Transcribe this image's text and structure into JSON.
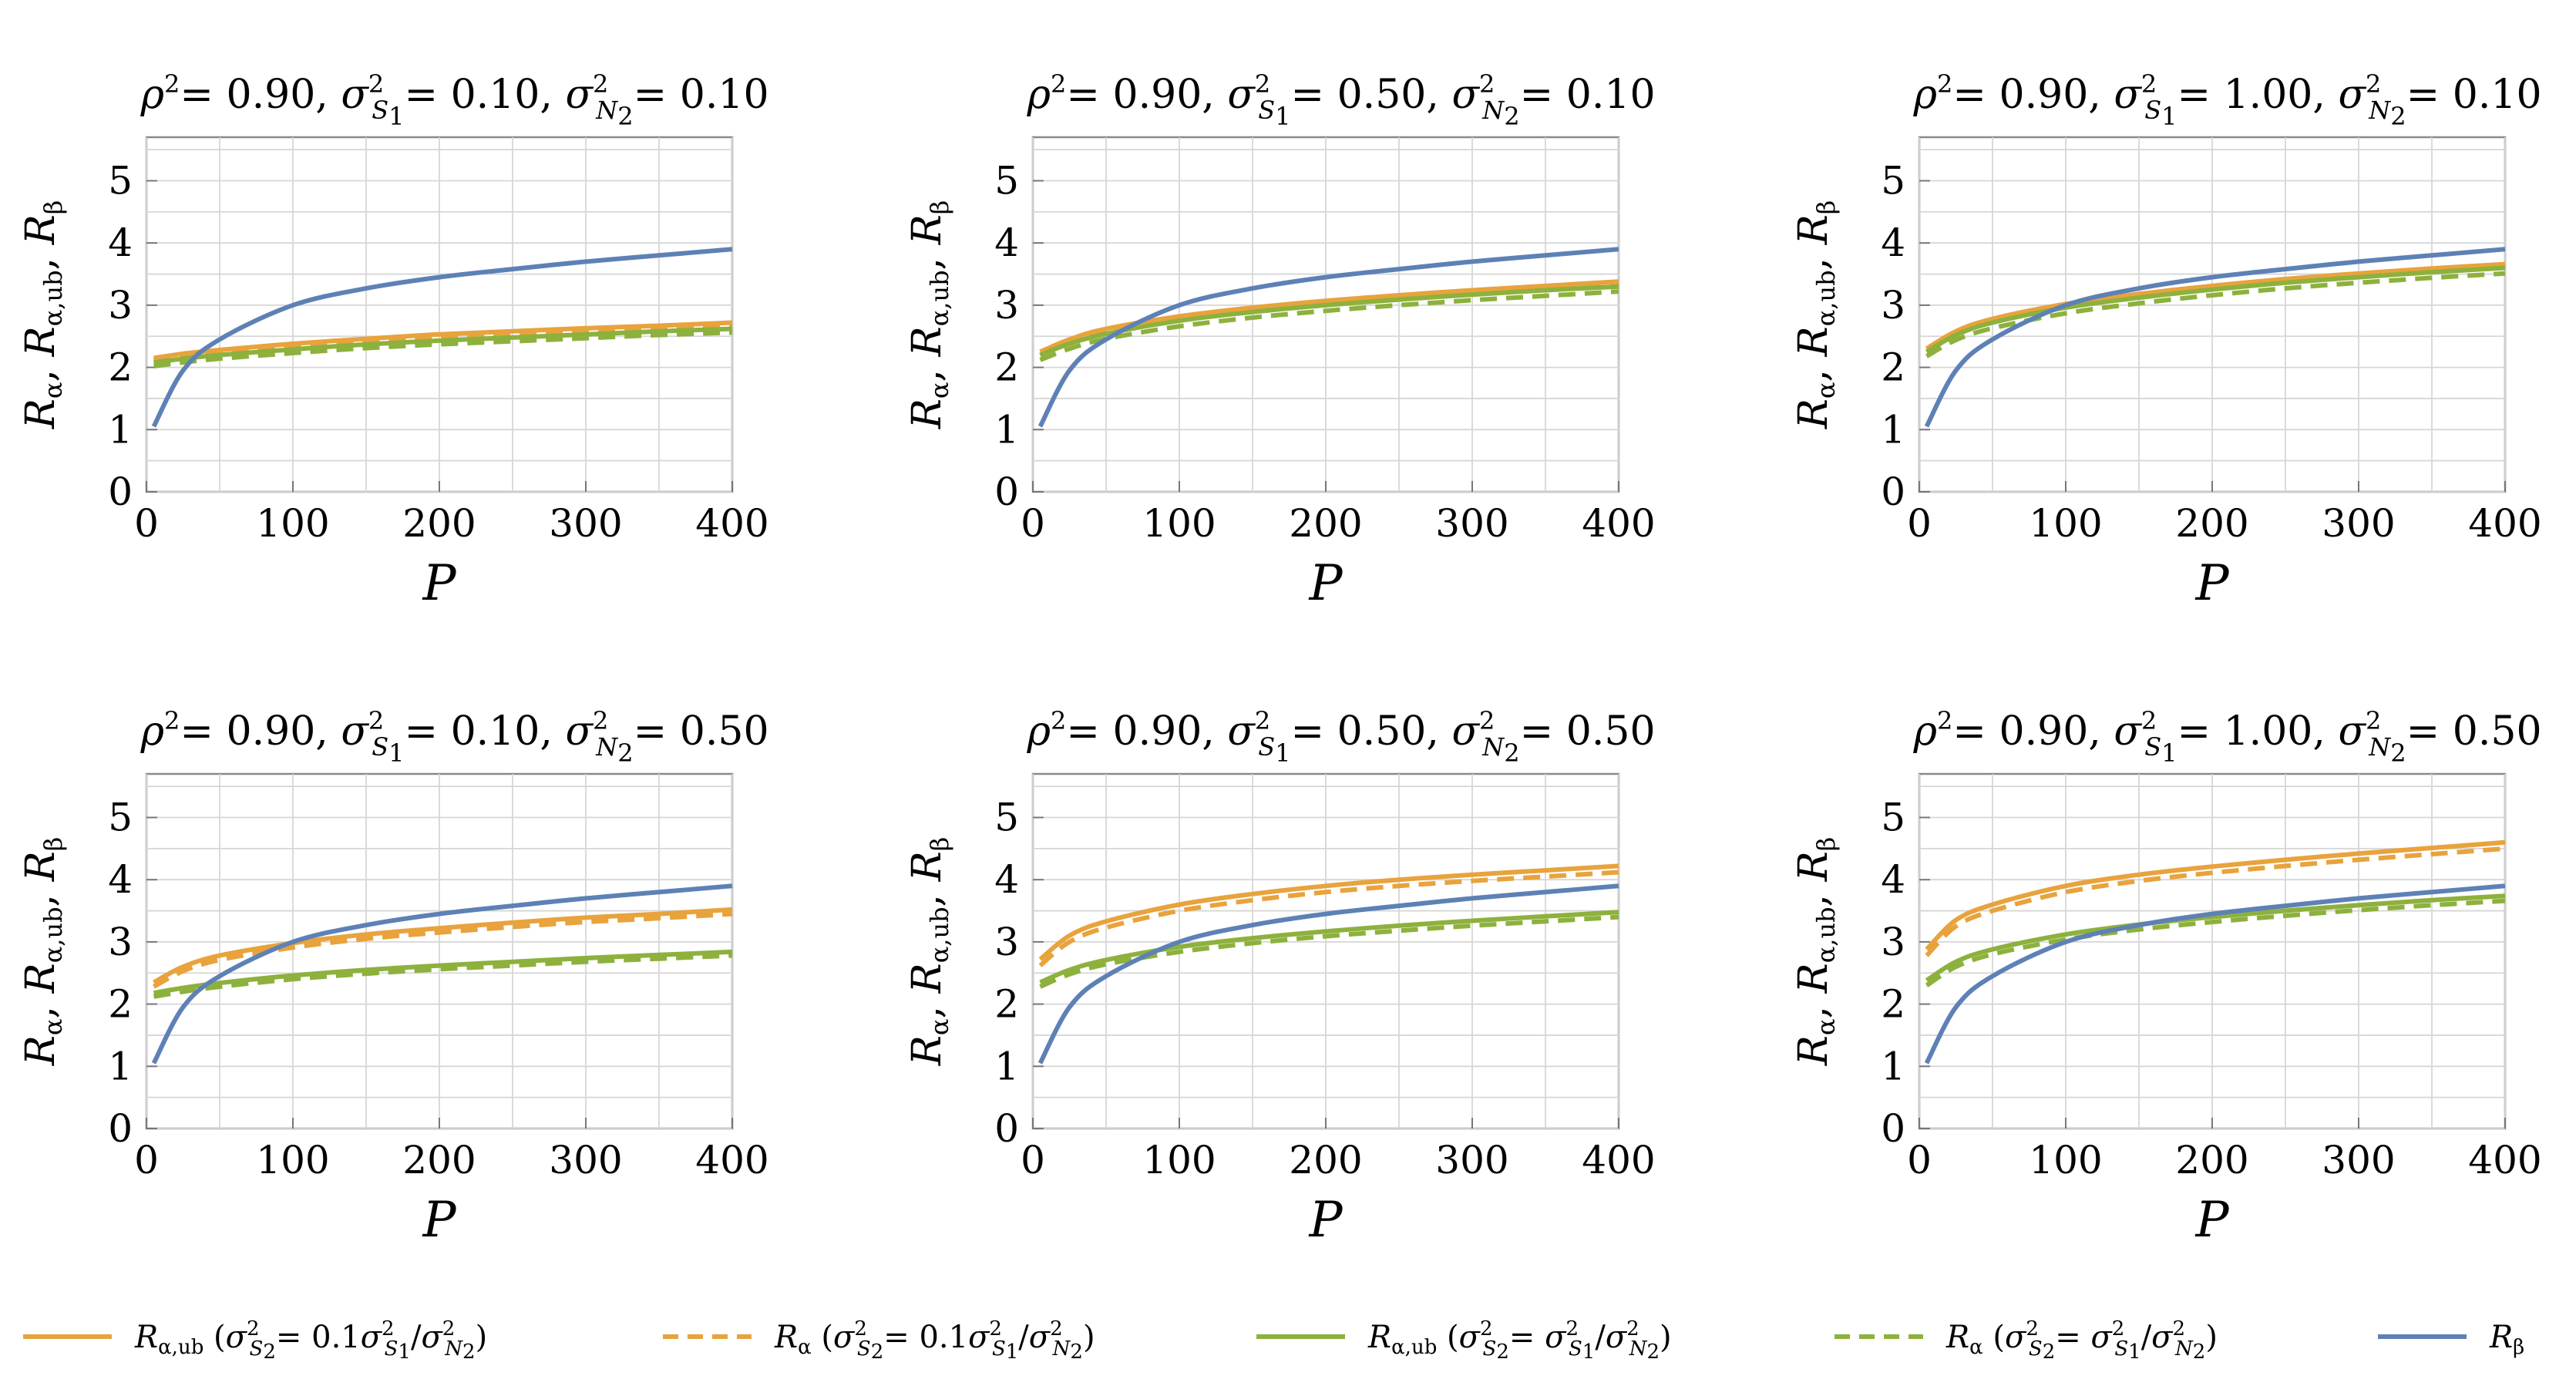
{
  "figure": {
    "x_axis_label": "P",
    "y_axis_label": "Rα, Rα,ub, Rβ",
    "legend": [
      {
        "label": "Rα,ub (σ²S₂= 0.1σ²S₁/σ²N₂)",
        "color": "#E8A33D",
        "dash": "solid"
      },
      {
        "label": "Rα (σ²S₂= 0.1σ²S₁/σ²N₂)",
        "color": "#E8A33D",
        "dash": "dashed"
      },
      {
        "label": "Rα,ub (σ²S₂= σ²S₁/σ²N₂)",
        "color": "#8DB13D",
        "dash": "solid"
      },
      {
        "label": "Rα  (σ²S₂= σ²S₁/σ²N₂)",
        "color": "#8DB13D",
        "dash": "dashed"
      },
      {
        "label": "Rβ",
        "color": "#5E81B5",
        "dash": "solid"
      }
    ]
  },
  "chart_data": [
    {
      "type": "line",
      "title": "ρ²= 0.90, σ²S₁= 0.10, σ²N₂= 0.10",
      "rho2": "0.90",
      "s1": "0.10",
      "n2": "0.10",
      "xlabel": "P",
      "ylabel": "Rα, Rα,ub, Rβ",
      "xlim": [
        0,
        400
      ],
      "ylim": [
        0,
        5.7
      ],
      "xticks": [
        "0",
        "100",
        "200",
        "300",
        "400"
      ],
      "yticks": [
        "0",
        "1",
        "2",
        "3",
        "4",
        "5"
      ],
      "x": [
        5,
        25,
        50,
        100,
        150,
        200,
        250,
        300,
        350,
        400
      ],
      "series": [
        {
          "name": "Rα,ub (0.1)",
          "values": [
            2.15,
            2.22,
            2.28,
            2.38,
            2.46,
            2.53,
            2.58,
            2.63,
            2.67,
            2.72
          ]
        },
        {
          "name": "Rα (0.1)",
          "values": [
            2.12,
            2.19,
            2.25,
            2.35,
            2.43,
            2.5,
            2.55,
            2.6,
            2.64,
            2.69
          ]
        },
        {
          "name": "Rα,ub (1)",
          "values": [
            2.08,
            2.14,
            2.2,
            2.29,
            2.37,
            2.43,
            2.48,
            2.53,
            2.58,
            2.62
          ]
        },
        {
          "name": "Rα (1)",
          "values": [
            2.02,
            2.08,
            2.14,
            2.23,
            2.31,
            2.37,
            2.42,
            2.47,
            2.52,
            2.56
          ]
        },
        {
          "name": "Rβ",
          "values": [
            1.05,
            1.95,
            2.45,
            3.0,
            3.27,
            3.45,
            3.58,
            3.7,
            3.8,
            3.9
          ]
        }
      ]
    },
    {
      "type": "line",
      "title": "ρ²= 0.90, σ²S₁= 0.50, σ²N₂= 0.10",
      "rho2": "0.90",
      "s1": "0.50",
      "n2": "0.10",
      "xlabel": "P",
      "ylabel": "Rα, Rα,ub, Rβ",
      "xlim": [
        0,
        400
      ],
      "ylim": [
        0,
        5.7
      ],
      "xticks": [
        "0",
        "100",
        "200",
        "300",
        "400"
      ],
      "yticks": [
        "0",
        "1",
        "2",
        "3",
        "4",
        "5"
      ],
      "x": [
        5,
        25,
        50,
        100,
        150,
        200,
        250,
        300,
        350,
        400
      ],
      "series": [
        {
          "name": "Rα,ub (0.1)",
          "values": [
            2.25,
            2.45,
            2.62,
            2.82,
            2.96,
            3.07,
            3.16,
            3.24,
            3.31,
            3.38
          ]
        },
        {
          "name": "Rα (0.1)",
          "values": [
            2.2,
            2.4,
            2.57,
            2.78,
            2.92,
            3.03,
            3.12,
            3.2,
            3.27,
            3.33
          ]
        },
        {
          "name": "Rα,ub (1)",
          "values": [
            2.2,
            2.38,
            2.54,
            2.75,
            2.89,
            3.0,
            3.09,
            3.17,
            3.24,
            3.3
          ]
        },
        {
          "name": "Rα (1)",
          "values": [
            2.12,
            2.3,
            2.46,
            2.66,
            2.8,
            2.91,
            3.0,
            3.08,
            3.15,
            3.22
          ]
        },
        {
          "name": "Rβ",
          "values": [
            1.05,
            1.95,
            2.45,
            3.0,
            3.27,
            3.45,
            3.58,
            3.7,
            3.8,
            3.9
          ]
        }
      ]
    },
    {
      "type": "line",
      "title": "ρ²= 0.90, σ²S₁= 1.00, σ²N₂= 0.10",
      "rho2": "0.90",
      "s1": "1.00",
      "n2": "0.10",
      "xlabel": "P",
      "ylabel": "Rα, Rα,ub, Rβ",
      "xlim": [
        0,
        400
      ],
      "ylim": [
        0,
        5.7
      ],
      "xticks": [
        "0",
        "100",
        "200",
        "300",
        "400"
      ],
      "yticks": [
        "0",
        "1",
        "2",
        "3",
        "4",
        "5"
      ],
      "x": [
        5,
        25,
        50,
        100,
        150,
        200,
        250,
        300,
        350,
        400
      ],
      "series": [
        {
          "name": "Rα,ub (0.1)",
          "values": [
            2.3,
            2.58,
            2.78,
            3.02,
            3.18,
            3.31,
            3.42,
            3.51,
            3.59,
            3.66
          ]
        },
        {
          "name": "Rα (0.1)",
          "values": [
            2.25,
            2.53,
            2.73,
            2.98,
            3.14,
            3.27,
            3.38,
            3.47,
            3.55,
            3.62
          ]
        },
        {
          "name": "Rα,ub (1)",
          "values": [
            2.25,
            2.52,
            2.72,
            2.96,
            3.12,
            3.25,
            3.36,
            3.45,
            3.53,
            3.6
          ]
        },
        {
          "name": "Rα (1)",
          "values": [
            2.18,
            2.44,
            2.63,
            2.87,
            3.03,
            3.16,
            3.27,
            3.36,
            3.44,
            3.51
          ]
        },
        {
          "name": "Rβ",
          "values": [
            1.05,
            1.95,
            2.45,
            3.0,
            3.27,
            3.45,
            3.58,
            3.7,
            3.8,
            3.9
          ]
        }
      ]
    },
    {
      "type": "line",
      "title": "ρ²= 0.90, σ²S₁= 0.10, σ²N₂= 0.50",
      "rho2": "0.90",
      "s1": "0.10",
      "n2": "0.50",
      "xlabel": "P",
      "ylabel": "Rα, Rα,ub, Rβ",
      "xlim": [
        0,
        400
      ],
      "ylim": [
        0,
        5.7
      ],
      "xticks": [
        "0",
        "100",
        "200",
        "300",
        "400"
      ],
      "yticks": [
        "0",
        "1",
        "2",
        "3",
        "4",
        "5"
      ],
      "x": [
        5,
        25,
        50,
        100,
        150,
        200,
        250,
        300,
        350,
        400
      ],
      "series": [
        {
          "name": "Rα,ub (0.1)",
          "values": [
            2.35,
            2.6,
            2.78,
            2.98,
            3.12,
            3.22,
            3.31,
            3.39,
            3.45,
            3.52
          ]
        },
        {
          "name": "Rα (0.1)",
          "values": [
            2.28,
            2.53,
            2.71,
            2.91,
            3.05,
            3.15,
            3.24,
            3.32,
            3.38,
            3.45
          ]
        },
        {
          "name": "Rα,ub (1)",
          "values": [
            2.18,
            2.26,
            2.34,
            2.46,
            2.55,
            2.62,
            2.68,
            2.74,
            2.79,
            2.84
          ]
        },
        {
          "name": "Rα (1)",
          "values": [
            2.12,
            2.2,
            2.28,
            2.4,
            2.49,
            2.56,
            2.62,
            2.68,
            2.73,
            2.78
          ]
        },
        {
          "name": "Rβ",
          "values": [
            1.05,
            1.95,
            2.45,
            3.0,
            3.27,
            3.45,
            3.58,
            3.7,
            3.8,
            3.9
          ]
        }
      ]
    },
    {
      "type": "line",
      "title": "ρ²= 0.90, σ²S₁= 0.50, σ²N₂= 0.50",
      "rho2": "0.90",
      "s1": "0.50",
      "n2": "0.50",
      "xlabel": "P",
      "ylabel": "Rα, Rα,ub, Rβ",
      "xlim": [
        0,
        400
      ],
      "ylim": [
        0,
        5.7
      ],
      "xticks": [
        "0",
        "100",
        "200",
        "300",
        "400"
      ],
      "yticks": [
        "0",
        "1",
        "2",
        "3",
        "4",
        "5"
      ],
      "x": [
        5,
        25,
        50,
        100,
        150,
        200,
        250,
        300,
        350,
        400
      ],
      "series": [
        {
          "name": "Rα,ub (0.1)",
          "values": [
            2.72,
            3.1,
            3.33,
            3.6,
            3.77,
            3.9,
            4.0,
            4.08,
            4.15,
            4.22
          ]
        },
        {
          "name": "Rα (0.1)",
          "values": [
            2.62,
            3.0,
            3.23,
            3.5,
            3.67,
            3.8,
            3.9,
            3.98,
            4.05,
            4.12
          ]
        },
        {
          "name": "Rα,ub (1)",
          "values": [
            2.35,
            2.55,
            2.71,
            2.92,
            3.06,
            3.17,
            3.26,
            3.34,
            3.41,
            3.48
          ]
        },
        {
          "name": "Rα (1)",
          "values": [
            2.28,
            2.48,
            2.64,
            2.84,
            2.98,
            3.09,
            3.18,
            3.26,
            3.33,
            3.4
          ]
        },
        {
          "name": "Rβ",
          "values": [
            1.05,
            1.95,
            2.45,
            3.0,
            3.27,
            3.45,
            3.58,
            3.7,
            3.8,
            3.9
          ]
        }
      ]
    },
    {
      "type": "line",
      "title": "ρ²= 0.90, σ²S₁= 1.00, σ²N₂= 0.50",
      "rho2": "0.90",
      "s1": "1.00",
      "n2": "0.50",
      "xlabel": "P",
      "ylabel": "Rα, Rα,ub, Rβ",
      "xlim": [
        0,
        400
      ],
      "ylim": [
        0,
        5.7
      ],
      "xticks": [
        "0",
        "100",
        "200",
        "300",
        "400"
      ],
      "yticks": [
        "0",
        "1",
        "2",
        "3",
        "4",
        "5"
      ],
      "x": [
        5,
        25,
        50,
        100,
        150,
        200,
        250,
        300,
        350,
        400
      ],
      "series": [
        {
          "name": "Rα,ub (0.1)",
          "values": [
            2.88,
            3.35,
            3.6,
            3.9,
            4.08,
            4.21,
            4.32,
            4.42,
            4.51,
            4.6
          ]
        },
        {
          "name": "Rα (0.1)",
          "values": [
            2.78,
            3.25,
            3.5,
            3.8,
            3.98,
            4.11,
            4.22,
            4.32,
            4.41,
            4.5
          ]
        },
        {
          "name": "Rα,ub (1)",
          "values": [
            2.38,
            2.68,
            2.88,
            3.12,
            3.28,
            3.4,
            3.5,
            3.59,
            3.67,
            3.74
          ]
        },
        {
          "name": "Rα (1)",
          "values": [
            2.3,
            2.6,
            2.8,
            3.04,
            3.2,
            3.32,
            3.42,
            3.51,
            3.59,
            3.66
          ]
        },
        {
          "name": "Rβ",
          "values": [
            1.05,
            1.95,
            2.45,
            3.0,
            3.27,
            3.45,
            3.58,
            3.7,
            3.8,
            3.9
          ]
        }
      ]
    }
  ]
}
